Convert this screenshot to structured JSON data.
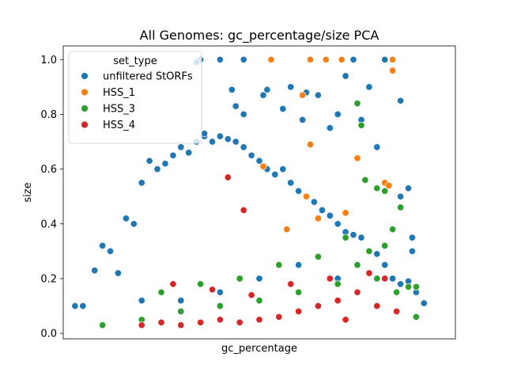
{
  "chart_data": {
    "type": "scatter",
    "title": "All Genomes: gc_percentage/size PCA",
    "xlabel": "gc_percentage",
    "ylabel": "size",
    "ylim": [
      -0.02,
      1.05
    ],
    "xlim": [
      0.0,
      1.0
    ],
    "yticks": [
      "0.0",
      "0.2",
      "0.4",
      "0.6",
      "0.8",
      "1.0"
    ],
    "ytick_values": [
      0.0,
      0.2,
      0.4,
      0.6,
      0.8,
      1.0
    ],
    "xticks": [],
    "grid": false,
    "legend": {
      "title": "set_type",
      "placement": "top-left"
    },
    "series": [
      {
        "name": "unfiltered StORFs",
        "color": "#1f77b4",
        "points": [
          [
            0.03,
            0.1
          ],
          [
            0.05,
            0.1
          ],
          [
            0.08,
            0.23
          ],
          [
            0.1,
            0.32
          ],
          [
            0.12,
            0.3
          ],
          [
            0.14,
            0.22
          ],
          [
            0.16,
            0.42
          ],
          [
            0.18,
            0.4
          ],
          [
            0.2,
            0.55
          ],
          [
            0.22,
            0.63
          ],
          [
            0.24,
            0.6
          ],
          [
            0.26,
            0.62
          ],
          [
            0.28,
            0.65
          ],
          [
            0.3,
            0.68
          ],
          [
            0.32,
            0.66
          ],
          [
            0.34,
            0.7
          ],
          [
            0.36,
            0.72
          ],
          [
            0.38,
            0.7
          ],
          [
            0.4,
            0.72
          ],
          [
            0.42,
            0.71
          ],
          [
            0.44,
            0.7
          ],
          [
            0.46,
            0.68
          ],
          [
            0.48,
            0.65
          ],
          [
            0.5,
            0.63
          ],
          [
            0.52,
            0.6
          ],
          [
            0.54,
            0.58
          ],
          [
            0.56,
            0.6
          ],
          [
            0.58,
            0.55
          ],
          [
            0.6,
            0.52
          ],
          [
            0.62,
            0.5
          ],
          [
            0.64,
            0.48
          ],
          [
            0.66,
            0.45
          ],
          [
            0.68,
            0.43
          ],
          [
            0.7,
            0.4
          ],
          [
            0.72,
            0.37
          ],
          [
            0.74,
            0.36
          ],
          [
            0.76,
            0.35
          ],
          [
            0.78,
            0.3
          ],
          [
            0.8,
            0.29
          ],
          [
            0.82,
            0.25
          ],
          [
            0.84,
            0.2
          ],
          [
            0.86,
            0.18
          ],
          [
            0.88,
            0.19
          ],
          [
            0.9,
            0.15
          ],
          [
            0.92,
            0.11
          ],
          [
            0.35,
            1.0
          ],
          [
            0.4,
            1.0
          ],
          [
            0.46,
            1.0
          ],
          [
            0.53,
            1.0
          ],
          [
            0.74,
            1.0
          ],
          [
            0.82,
            1.0
          ],
          [
            0.34,
            0.99
          ],
          [
            0.43,
            0.89
          ],
          [
            0.52,
            0.89
          ],
          [
            0.51,
            0.87
          ],
          [
            0.58,
            0.9
          ],
          [
            0.62,
            0.88
          ],
          [
            0.72,
            0.94
          ],
          [
            0.78,
            0.9
          ],
          [
            0.86,
            0.85
          ],
          [
            0.44,
            0.83
          ],
          [
            0.61,
            0.78
          ],
          [
            0.68,
            0.75
          ],
          [
            0.36,
            0.73
          ],
          [
            0.46,
            0.8
          ],
          [
            0.56,
            0.82
          ],
          [
            0.65,
            0.87
          ],
          [
            0.7,
            0.8
          ],
          [
            0.76,
            0.78
          ],
          [
            0.8,
            0.68
          ],
          [
            0.88,
            0.53
          ],
          [
            0.86,
            0.5
          ],
          [
            0.89,
            0.35
          ],
          [
            0.89,
            0.3
          ],
          [
            0.2,
            0.12
          ],
          [
            0.3,
            0.12
          ],
          [
            0.4,
            0.15
          ],
          [
            0.5,
            0.2
          ],
          [
            0.6,
            0.25
          ],
          [
            0.7,
            0.2
          ]
        ]
      },
      {
        "name": "HSS_1",
        "color": "#ff7f0e",
        "points": [
          [
            0.53,
            1.0
          ],
          [
            0.63,
            1.0
          ],
          [
            0.67,
            1.0
          ],
          [
            0.71,
            1.0
          ],
          [
            0.84,
            1.0
          ],
          [
            0.84,
            0.96
          ],
          [
            0.61,
            0.87
          ],
          [
            0.63,
            0.69
          ],
          [
            0.75,
            0.64
          ],
          [
            0.82,
            0.55
          ],
          [
            0.83,
            0.54
          ],
          [
            0.51,
            0.61
          ],
          [
            0.62,
            0.5
          ],
          [
            0.65,
            0.42
          ],
          [
            0.57,
            0.38
          ],
          [
            0.72,
            0.44
          ]
        ]
      },
      {
        "name": "HSS_3",
        "color": "#2ca02c",
        "points": [
          [
            0.75,
            0.84
          ],
          [
            0.76,
            0.76
          ],
          [
            0.77,
            0.56
          ],
          [
            0.8,
            0.53
          ],
          [
            0.82,
            0.52
          ],
          [
            0.86,
            0.46
          ],
          [
            0.84,
            0.38
          ],
          [
            0.82,
            0.32
          ],
          [
            0.88,
            0.17
          ],
          [
            0.9,
            0.17
          ],
          [
            0.9,
            0.06
          ],
          [
            0.1,
            0.03
          ],
          [
            0.2,
            0.05
          ],
          [
            0.3,
            0.08
          ],
          [
            0.4,
            0.1
          ],
          [
            0.5,
            0.12
          ],
          [
            0.6,
            0.15
          ],
          [
            0.7,
            0.18
          ],
          [
            0.75,
            0.25
          ],
          [
            0.78,
            0.3
          ],
          [
            0.8,
            0.2
          ],
          [
            0.85,
            0.15
          ],
          [
            0.45,
            0.2
          ],
          [
            0.55,
            0.25
          ],
          [
            0.65,
            0.28
          ],
          [
            0.35,
            0.18
          ],
          [
            0.25,
            0.15
          ],
          [
            0.72,
            0.35
          ]
        ]
      },
      {
        "name": "HSS_4",
        "color": "#d62728",
        "points": [
          [
            0.46,
            0.45
          ],
          [
            0.42,
            0.57
          ],
          [
            0.2,
            0.03
          ],
          [
            0.25,
            0.04
          ],
          [
            0.3,
            0.03
          ],
          [
            0.35,
            0.04
          ],
          [
            0.4,
            0.05
          ],
          [
            0.45,
            0.04
          ],
          [
            0.5,
            0.05
          ],
          [
            0.55,
            0.06
          ],
          [
            0.6,
            0.08
          ],
          [
            0.65,
            0.1
          ],
          [
            0.7,
            0.12
          ],
          [
            0.75,
            0.15
          ],
          [
            0.8,
            0.1
          ],
          [
            0.85,
            0.08
          ],
          [
            0.28,
            0.18
          ],
          [
            0.38,
            0.16
          ],
          [
            0.48,
            0.14
          ],
          [
            0.58,
            0.18
          ],
          [
            0.68,
            0.2
          ],
          [
            0.78,
            0.22
          ],
          [
            0.82,
            0.2
          ],
          [
            0.72,
            0.05
          ]
        ]
      }
    ]
  }
}
